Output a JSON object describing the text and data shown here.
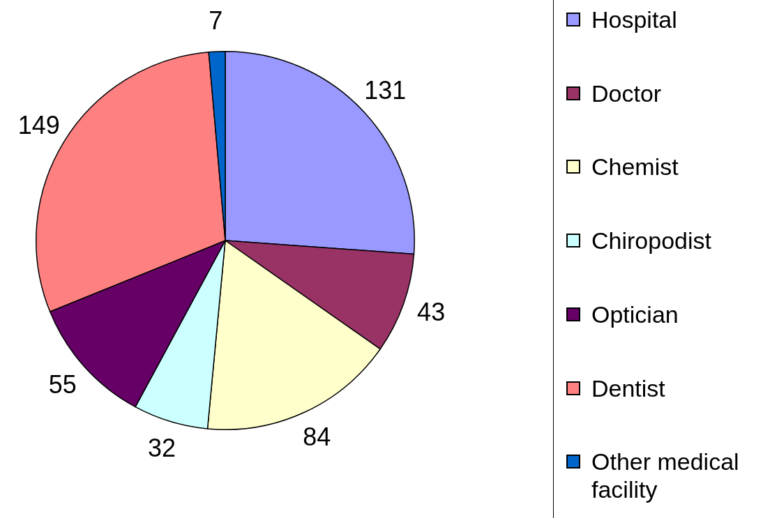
{
  "chart_data": {
    "type": "pie",
    "categories": [
      "Hospital",
      "Doctor",
      "Chemist",
      "Chiropodist",
      "Optician",
      "Dentist",
      "Other medical facility"
    ],
    "values": [
      131,
      43,
      84,
      32,
      55,
      149,
      7
    ],
    "colors": [
      "#9999ff",
      "#993366",
      "#ffffcc",
      "#ccffff",
      "#660066",
      "#ff8080",
      "#0066cc"
    ],
    "data_labels": true,
    "legend": "right"
  }
}
